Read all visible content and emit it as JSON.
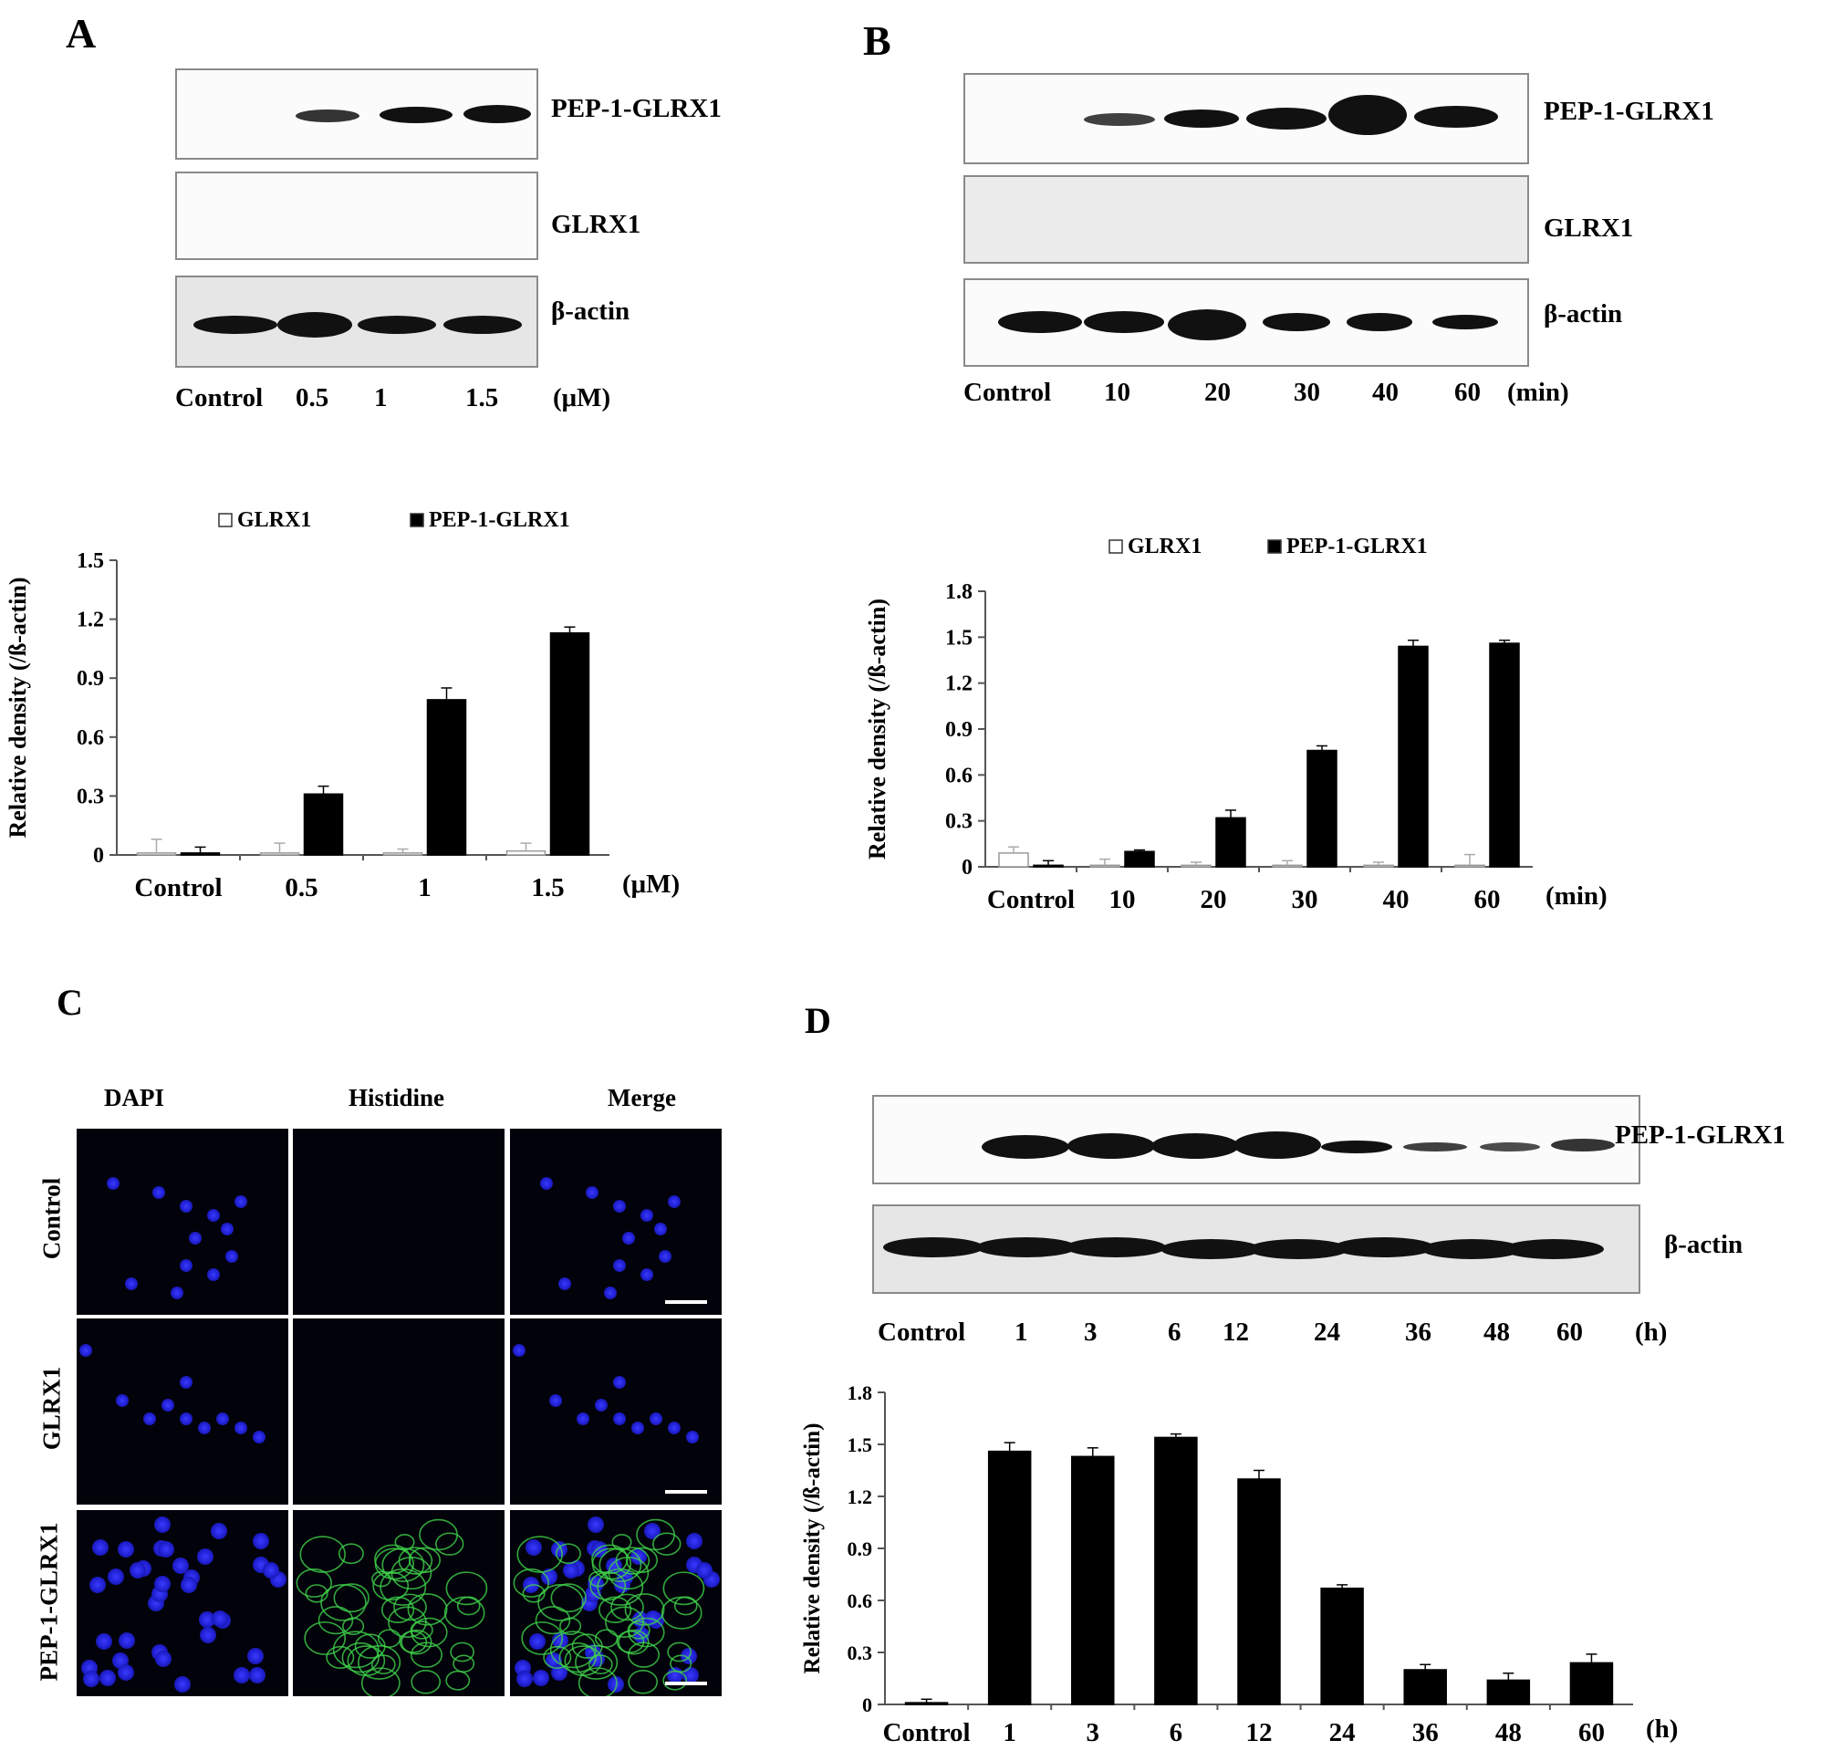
{
  "panels": {
    "A": {
      "letter": "A",
      "blots": [
        "PEP-1-GLRX1",
        "GLRX1",
        "β-actin"
      ],
      "lanes": [
        "Control",
        "0.5",
        "1",
        "1.5"
      ],
      "unit": "(μM)",
      "legend": [
        "GLRX1",
        "PEP-1-GLRX1"
      ]
    },
    "B": {
      "letter": "B",
      "blots": [
        "PEP-1-GLRX1",
        "GLRX1",
        "β-actin"
      ],
      "lanes": [
        "Control",
        "10",
        "20",
        "30",
        "40",
        "60"
      ],
      "unit": "(min)",
      "legend": [
        "GLRX1",
        "PEP-1-GLRX1"
      ]
    },
    "C": {
      "letter": "C",
      "columns": [
        "DAPI",
        "Histidine",
        "Merge"
      ],
      "rows": [
        "Control",
        "GLRX1",
        "PEP-1-GLRX1"
      ]
    },
    "D": {
      "letter": "D",
      "blots": [
        "PEP-1-GLRX1",
        "β-actin"
      ],
      "lanes": [
        "Control",
        "1",
        "3",
        "6",
        "12",
        "24",
        "36",
        "48",
        "60"
      ],
      "unit": "(h)"
    }
  },
  "chart_data": [
    {
      "id": "A",
      "type": "bar",
      "categories": [
        "Control",
        "0.5",
        "1",
        "1.5"
      ],
      "xunit": "(μM)",
      "ylabel": "Relative density  (/ß-actin)",
      "ylim": [
        0,
        1.5
      ],
      "yticks": [
        "0",
        "0.3",
        "0.6",
        "0.9",
        "1.2",
        "1.5"
      ],
      "legend_position": "top",
      "series": [
        {
          "name": "GLRX1",
          "color": "#ffffff",
          "values": [
            0.01,
            0.01,
            0.01,
            0.02
          ],
          "errors": [
            0.07,
            0.05,
            0.02,
            0.04
          ]
        },
        {
          "name": "PEP-1-GLRX1",
          "color": "#000000",
          "values": [
            0.01,
            0.31,
            0.79,
            1.13
          ],
          "errors": [
            0.03,
            0.04,
            0.06,
            0.03
          ]
        }
      ]
    },
    {
      "id": "B",
      "type": "bar",
      "categories": [
        "Control",
        "10",
        "20",
        "30",
        "40",
        "60"
      ],
      "xunit": "(min)",
      "ylabel": "Relative density  (/ß-actin)",
      "ylim": [
        0,
        1.8
      ],
      "yticks": [
        "0",
        "0.3",
        "0.6",
        "0.9",
        "1.2",
        "1.5",
        "1.8"
      ],
      "legend_position": "top",
      "series": [
        {
          "name": "GLRX1",
          "color": "#ffffff",
          "values": [
            0.09,
            0.01,
            0.01,
            0.01,
            0.01,
            0.01
          ],
          "errors": [
            0.04,
            0.04,
            0.02,
            0.03,
            0.02,
            0.07
          ]
        },
        {
          "name": "PEP-1-GLRX1",
          "color": "#000000",
          "values": [
            0.01,
            0.1,
            0.32,
            0.76,
            1.44,
            1.46
          ],
          "errors": [
            0.03,
            0.01,
            0.05,
            0.03,
            0.04,
            0.02
          ]
        }
      ]
    },
    {
      "id": "D",
      "type": "bar",
      "categories": [
        "Control",
        "1",
        "3",
        "6",
        "12",
        "24",
        "36",
        "48",
        "60"
      ],
      "xunit": "(h)",
      "ylabel": "Relative density  (/ß-actin)",
      "ylim": [
        0,
        1.8
      ],
      "yticks": [
        "0",
        "0.3",
        "0.6",
        "0.9",
        "1.2",
        "1.5",
        "1.8"
      ],
      "series": [
        {
          "color": "#000000",
          "values": [
            0.01,
            1.46,
            1.43,
            1.54,
            1.3,
            0.67,
            0.2,
            0.14,
            0.24
          ],
          "errors": [
            0.02,
            0.05,
            0.05,
            0.02,
            0.05,
            0.02,
            0.03,
            0.04,
            0.05
          ]
        }
      ]
    }
  ]
}
